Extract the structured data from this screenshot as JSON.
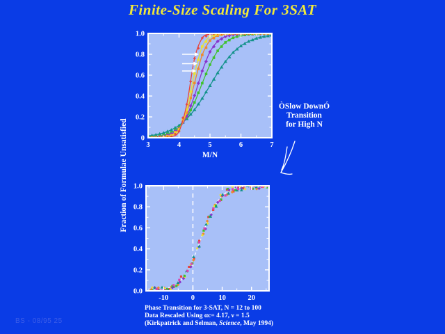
{
  "slide": {
    "title": "Finite-Size Scaling For 3SAT",
    "footer": "BS - 08/95  25",
    "annotation": {
      "line1": "ÒSlow DownÓ",
      "line2": "Transition",
      "line3": "for High N"
    },
    "caption": {
      "line1": "Phase Transition for 3-SAT, N = 12 to 100",
      "line2": "Data Rescaled Using αc= 4.17, ν = 1.5",
      "line3_pre": "(Kirkpatrick and Selman, ",
      "line3_italic": "Science",
      "line3_post": ", May 1994)"
    }
  },
  "colors": {
    "background": "#0a3ce6",
    "plot_background": "#a8c0f8",
    "axis": "#ffffff",
    "title_text": "#f0e83a",
    "footer_text": "#3c5de8"
  },
  "chart_data": [
    {
      "id": "top",
      "type": "line",
      "xlabel": "M/N",
      "ylabel": "Fraction of Formulae Unsatisfied",
      "xlim": [
        3,
        7
      ],
      "ylim": [
        0,
        1
      ],
      "grid": false,
      "xticks": {
        "major": [
          3,
          4,
          5,
          6,
          7
        ],
        "labels": [
          "3",
          "4",
          "5",
          "6",
          "7"
        ],
        "minor": [
          3.5,
          4.5,
          5.5,
          6.5
        ]
      },
      "yticks": {
        "major": [
          0,
          0.2,
          0.4,
          0.6,
          0.8,
          1
        ],
        "labels": [
          "0",
          "0.2",
          "0.4",
          "0.6",
          "0.8",
          "1.0"
        ],
        "minor": [
          0.1,
          0.3,
          0.5,
          0.7,
          0.9
        ]
      },
      "x": [
        3,
        3.25,
        3.5,
        3.75,
        4,
        4.25,
        4.5,
        4.75,
        5,
        5.25,
        5.5,
        5.75,
        6,
        6.25,
        6.5,
        6.75,
        7
      ],
      "series": [
        {
          "name": "teal",
          "color": "#13928a",
          "marker": "tri",
          "values": [
            0.018,
            0.029,
            0.047,
            0.076,
            0.119,
            0.182,
            0.269,
            0.378,
            0.5,
            0.622,
            0.731,
            0.818,
            0.881,
            0.924,
            0.953,
            0.971,
            0.982
          ]
        },
        {
          "name": "green",
          "color": "#3fc12c",
          "marker": "square",
          "values": [
            0.005,
            0.012,
            0.024,
            0.05,
            0.101,
            0.194,
            0.339,
            0.523,
            0.7,
            0.833,
            0.914,
            0.958,
            0.98,
            0.99,
            0.995,
            0.998,
            0.999
          ]
        },
        {
          "name": "purple",
          "color": "#8834cc",
          "marker": "diamond",
          "values": [
            0.002,
            0.006,
            0.014,
            0.037,
            0.09,
            0.206,
            0.405,
            0.64,
            0.823,
            0.924,
            0.97,
            0.988,
            0.995,
            0.998,
            0.999,
            1,
            1
          ]
        },
        {
          "name": "orange",
          "color": "#ef8a2c",
          "marker": "square",
          "values": [
            0.001,
            0.002,
            0.007,
            0.025,
            0.083,
            0.24,
            0.525,
            0.794,
            0.931,
            0.979,
            0.994,
            0.998,
            0.999,
            1,
            1,
            1,
            1
          ]
        },
        {
          "name": "yellow",
          "color": "#ece32f",
          "marker": "square",
          "values": [
            0,
            0.001,
            0.004,
            0.019,
            0.078,
            0.27,
            0.615,
            0.874,
            0.968,
            0.992,
            0.998,
            1,
            1,
            1,
            1,
            1,
            1
          ]
        },
        {
          "name": "red",
          "color": "#e8443c",
          "marker": "plus",
          "values": [
            0,
            0,
            0.001,
            0.01,
            0.063,
            0.32,
            0.76,
            0.956,
            0.993,
            0.999,
            1,
            1,
            1,
            1,
            1,
            1,
            1
          ]
        }
      ],
      "arrow_annotations": [
        {
          "x1": 4.1,
          "x2": 4.64,
          "y": 0.8
        },
        {
          "x1": 4.1,
          "x2": 4.6,
          "y": 0.71
        },
        {
          "x1": 4.1,
          "x2": 4.56,
          "y": 0.64
        }
      ]
    },
    {
      "id": "bottom",
      "type": "scatter",
      "xlabel": "",
      "xlim": [
        -16,
        26
      ],
      "ylim": [
        0,
        1
      ],
      "grid": false,
      "xticks": {
        "major": [
          -10,
          0,
          10,
          20
        ],
        "labels": [
          "-10",
          "0",
          "10",
          "20"
        ],
        "minor": [
          -15,
          -5,
          5,
          15,
          25
        ]
      },
      "yticks": {
        "major": [
          0,
          0.2,
          0.4,
          0.6,
          0.8,
          1
        ],
        "labels": [
          "0.0",
          "0.2",
          "0.4",
          "0.6",
          "0.8",
          "1.0"
        ],
        "minor": [
          0.1,
          0.3,
          0.5,
          0.7,
          0.9
        ]
      },
      "dashed_vline_x": 0,
      "fit_curve": {
        "x": [
          -15,
          -13,
          -11,
          -9,
          -7,
          -5,
          -3,
          -1,
          1,
          3,
          5,
          7,
          9,
          11,
          13,
          15,
          17,
          19,
          21,
          23,
          25
        ],
        "y": [
          0.004,
          0.007,
          0.013,
          0.024,
          0.045,
          0.08,
          0.14,
          0.234,
          0.363,
          0.516,
          0.665,
          0.788,
          0.874,
          0.928,
          0.96,
          0.978,
          0.988,
          0.994,
          0.997,
          0.998,
          0.999
        ]
      },
      "scatter": {
        "colors": [
          "#e8443c",
          "#ef8a2c",
          "#ece32f",
          "#3fc12c",
          "#8834cc",
          "#13928a",
          "#d844b0"
        ],
        "points_per_series": 19,
        "x_start": -14.5,
        "x_step": 2.15,
        "jitter_x": 1.3,
        "jitter_y": 0.055
      }
    }
  ]
}
